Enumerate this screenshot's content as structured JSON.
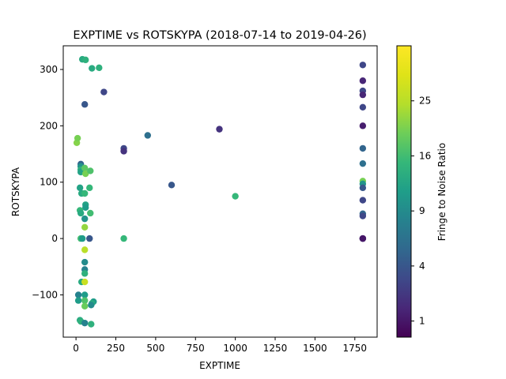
{
  "chart_data": {
    "type": "scatter",
    "title": "EXPTIME vs ROTSKYPA (2018-07-14 to 2019-04-26)",
    "xlabel": "EXPTIME",
    "ylabel": "ROTSKYPA",
    "xlim": [
      -80,
      1890
    ],
    "ylim": [
      -175,
      342
    ],
    "xticks": [
      0,
      250,
      500,
      750,
      1000,
      1250,
      1500,
      1750
    ],
    "yticks": [
      -100,
      0,
      100,
      200,
      300
    ],
    "grid": false,
    "colorbar": {
      "label": "Fringe to Noise Ratio",
      "scale": "sqrt",
      "range": [
        0.5,
        36
      ],
      "ticks": [
        1,
        4,
        9,
        16,
        25
      ],
      "colormap": "viridis"
    },
    "points": [
      {
        "x": 5,
        "y": 170,
        "c": 21
      },
      {
        "x": 10,
        "y": 178,
        "c": 20
      },
      {
        "x": 30,
        "y": 132,
        "c": 5
      },
      {
        "x": 30,
        "y": 128,
        "c": 10
      },
      {
        "x": 30,
        "y": 122,
        "c": 14
      },
      {
        "x": 30,
        "y": 118,
        "c": 12
      },
      {
        "x": 55,
        "y": 125,
        "c": 18
      },
      {
        "x": 60,
        "y": 115,
        "c": 20
      },
      {
        "x": 90,
        "y": 120,
        "c": 17
      },
      {
        "x": 25,
        "y": 90,
        "c": 12
      },
      {
        "x": 85,
        "y": 90,
        "c": 15
      },
      {
        "x": 35,
        "y": 80,
        "c": 13
      },
      {
        "x": 55,
        "y": 80,
        "c": 15
      },
      {
        "x": 60,
        "y": 60,
        "c": 12
      },
      {
        "x": 60,
        "y": 55,
        "c": 11
      },
      {
        "x": 25,
        "y": 50,
        "c": 15
      },
      {
        "x": 30,
        "y": 45,
        "c": 13
      },
      {
        "x": 90,
        "y": 45,
        "c": 16
      },
      {
        "x": 55,
        "y": 35,
        "c": 10
      },
      {
        "x": 55,
        "y": 20,
        "c": 22
      },
      {
        "x": 30,
        "y": 0,
        "c": 16
      },
      {
        "x": 40,
        "y": 0,
        "c": 11
      },
      {
        "x": 85,
        "y": 0,
        "c": 4
      },
      {
        "x": 300,
        "y": 0,
        "c": 15
      },
      {
        "x": 55,
        "y": -20,
        "c": 25
      },
      {
        "x": 55,
        "y": -42,
        "c": 9
      },
      {
        "x": 55,
        "y": -55,
        "c": 8
      },
      {
        "x": 55,
        "y": -62,
        "c": 14
      },
      {
        "x": 35,
        "y": -77,
        "c": 13
      },
      {
        "x": 55,
        "y": -77,
        "c": 27
      },
      {
        "x": 15,
        "y": -100,
        "c": 8
      },
      {
        "x": 55,
        "y": -100,
        "c": 11
      },
      {
        "x": 15,
        "y": -110,
        "c": 11
      },
      {
        "x": 55,
        "y": -110,
        "c": 17
      },
      {
        "x": 55,
        "y": -120,
        "c": 19
      },
      {
        "x": 110,
        "y": -112,
        "c": 11
      },
      {
        "x": 100,
        "y": -115,
        "c": 13
      },
      {
        "x": 95,
        "y": -118,
        "c": 9
      },
      {
        "x": 25,
        "y": -145,
        "c": 13
      },
      {
        "x": 30,
        "y": -147,
        "c": 14
      },
      {
        "x": 55,
        "y": -150,
        "c": 8
      },
      {
        "x": 95,
        "y": -152,
        "c": 14
      },
      {
        "x": 40,
        "y": 318,
        "c": 13
      },
      {
        "x": 60,
        "y": 317,
        "c": 14
      },
      {
        "x": 100,
        "y": 302,
        "c": 13
      },
      {
        "x": 145,
        "y": 303,
        "c": 14
      },
      {
        "x": 55,
        "y": 238,
        "c": 4
      },
      {
        "x": 175,
        "y": 260,
        "c": 3
      },
      {
        "x": 300,
        "y": 160,
        "c": 3
      },
      {
        "x": 300,
        "y": 155,
        "c": 2
      },
      {
        "x": 450,
        "y": 183,
        "c": 6
      },
      {
        "x": 600,
        "y": 95,
        "c": 4
      },
      {
        "x": 900,
        "y": 194,
        "c": 2
      },
      {
        "x": 1000,
        "y": 75,
        "c": 15
      },
      {
        "x": 1800,
        "y": 308,
        "c": 3
      },
      {
        "x": 1800,
        "y": 280,
        "c": 1.5
      },
      {
        "x": 1800,
        "y": 262,
        "c": 3
      },
      {
        "x": 1800,
        "y": 255,
        "c": 1.5
      },
      {
        "x": 1800,
        "y": 233,
        "c": 3
      },
      {
        "x": 1800,
        "y": 200,
        "c": 1.2
      },
      {
        "x": 1800,
        "y": 160,
        "c": 5
      },
      {
        "x": 1800,
        "y": 133,
        "c": 6
      },
      {
        "x": 1800,
        "y": 102,
        "c": 20
      },
      {
        "x": 1800,
        "y": 97,
        "c": 10
      },
      {
        "x": 1800,
        "y": 90,
        "c": 4
      },
      {
        "x": 1800,
        "y": 68,
        "c": 3
      },
      {
        "x": 1800,
        "y": 44,
        "c": 5
      },
      {
        "x": 1800,
        "y": 40,
        "c": 3
      },
      {
        "x": 1800,
        "y": 0,
        "c": 1.5
      },
      {
        "x": 1800,
        "y": 0,
        "c": 2
      },
      {
        "x": 1800,
        "y": 0,
        "c": 1
      }
    ]
  }
}
